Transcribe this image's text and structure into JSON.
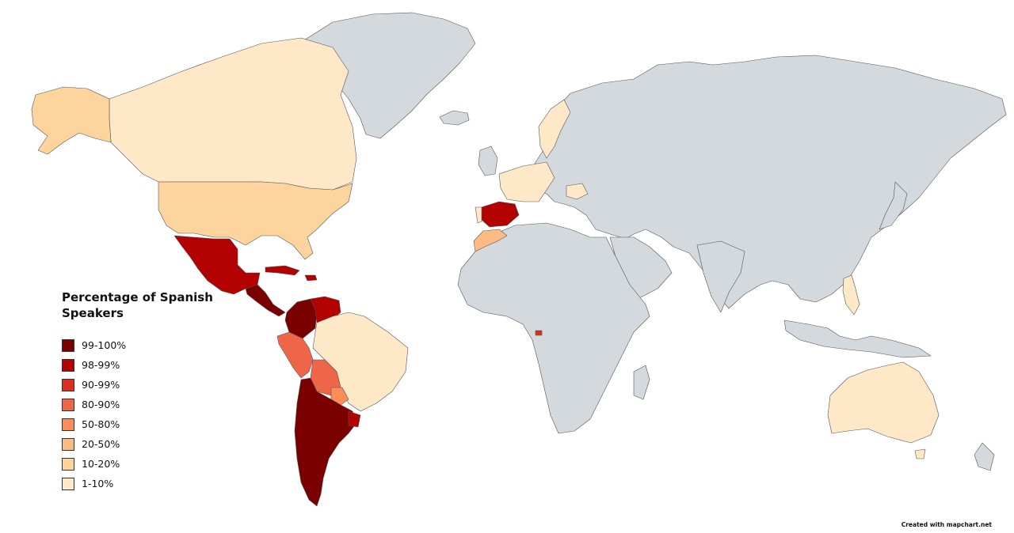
{
  "legend": {
    "title": "Percentage of Spanish Speakers",
    "items": [
      {
        "label": "99-100%",
        "color": "#7a0000"
      },
      {
        "label": "98-99%",
        "color": "#b30000"
      },
      {
        "label": "90-99%",
        "color": "#d7301f"
      },
      {
        "label": "80-90%",
        "color": "#ef6548"
      },
      {
        "label": "50-80%",
        "color": "#fc8d59"
      },
      {
        "label": "20-50%",
        "color": "#fdbb84"
      },
      {
        "label": "10-20%",
        "color": "#fdd49e"
      },
      {
        "label": "1-10%",
        "color": "#fee8c8"
      }
    ]
  },
  "no_data_color": "#d3d9dc",
  "credit": "Created with mapchart.net"
}
